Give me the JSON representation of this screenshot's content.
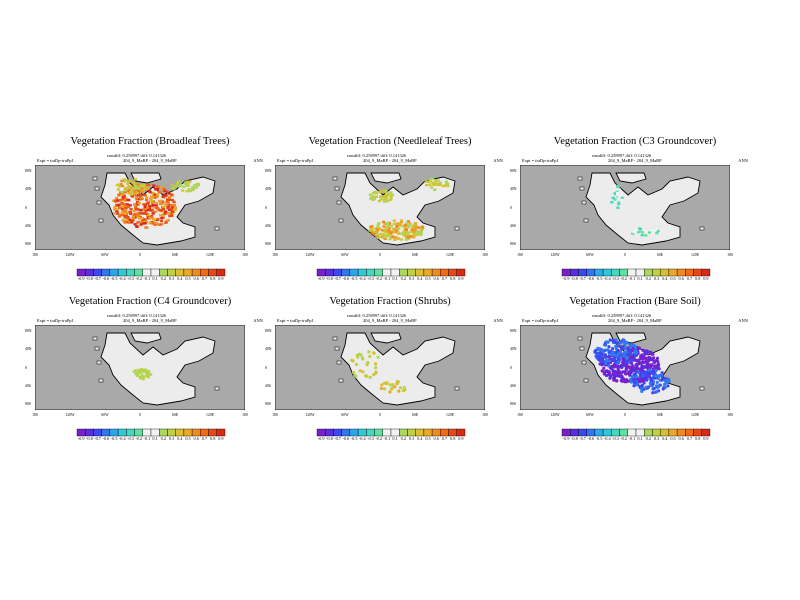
{
  "figure": {
    "panels": [
      {
        "title": "Vegetation Fraction (Broadleaf Trees)",
        "meta_line1": "rmsdiff: 0.258997 diff: 0.141326",
        "meta_line2": "204_9_MaBP - 204_9_MaBP",
        "expt": "Expt = traDp-traPp1",
        "season": "ANN",
        "colorbar_labels": [
          "-0.9",
          "-0.8",
          "-0.7",
          "-0.6",
          "-0.5",
          "-0.4",
          "-0.3",
          "-0.2",
          "-0.1",
          "0.1",
          "0.2",
          "0.3",
          "0.4",
          "0.5",
          "0.6",
          "0.7",
          "0.8",
          "0.9"
        ]
      },
      {
        "title": "Vegetation Fraction (Needleleaf Trees)",
        "meta_line1": "rmsdiff: 0.258997 diff: 0.141326",
        "meta_line2": "204_9_MaBP - 204_9_MaBP",
        "expt": "Expt = traDp-traPp1",
        "season": "ANN",
        "colorbar_labels": [
          "-0.9",
          "-0.8",
          "-0.7",
          "-0.6",
          "-0.5",
          "-0.4",
          "-0.3",
          "-0.2",
          "-0.1",
          "0.1",
          "0.2",
          "0.3",
          "0.4",
          "0.5",
          "0.6",
          "0.7",
          "0.8",
          "0.9"
        ]
      },
      {
        "title": "Vegetation Fraction (C3 Groundcover)",
        "meta_line1": "rmsdiff: 0.258997 diff: 0.141326",
        "meta_line2": "204_9_MaBP - 204_9_MaBP",
        "expt": "Expt = traDp-traPp1",
        "season": "ANN",
        "colorbar_labels": [
          "-0.9",
          "-0.8",
          "-0.7",
          "-0.6",
          "-0.5",
          "-0.4",
          "-0.3",
          "-0.2",
          "-0.1",
          "0.1",
          "0.2",
          "0.3",
          "0.4",
          "0.5",
          "0.6",
          "0.7",
          "0.8",
          "0.9"
        ]
      },
      {
        "title": "Vegetation Fraction (C4 Groundcover)",
        "meta_line1": "rmsdiff: 0.258997 diff: 0.141326",
        "meta_line2": "204_9_MaBP - 204_9_MaBP",
        "expt": "Expt = traDp-traPp1",
        "season": "ANN",
        "colorbar_labels": [
          "-0.9",
          "-0.8",
          "-0.7",
          "-0.6",
          "-0.5",
          "-0.4",
          "-0.3",
          "-0.2",
          "-0.1",
          "0.1",
          "0.2",
          "0.3",
          "0.4",
          "0.5",
          "0.6",
          "0.7",
          "0.8",
          "0.9"
        ]
      },
      {
        "title": "Vegetation Fraction (Shrubs)",
        "meta_line1": "rmsdiff: 0.258997 diff: 0.141326",
        "meta_line2": "204_9_MaBP - 204_9_MaBP",
        "expt": "Expt = traDp-traPp1",
        "season": "ANN",
        "colorbar_labels": [
          "-0.9",
          "-0.8",
          "-0.7",
          "-0.6",
          "-0.5",
          "-0.4",
          "-0.3",
          "-0.2",
          "-0.1",
          "0.1",
          "0.2",
          "0.3",
          "0.4",
          "0.5",
          "0.6",
          "0.7",
          "0.8",
          "0.9"
        ]
      },
      {
        "title": "Vegetation Fraction (Bare Soil)",
        "meta_line1": "rmsdiff: 0.258997 diff: 0.141326",
        "meta_line2": "204_9_MaBP - 204_9_MaBP",
        "expt": "Expt = traDp-traPp1",
        "season": "ANN",
        "colorbar_labels": [
          "-0.9",
          "-0.8",
          "-0.7",
          "-0.6",
          "-0.5",
          "-0.4",
          "-0.3",
          "-0.2",
          "-0.1",
          "0.1",
          "0.2",
          "0.3",
          "0.4",
          "0.5",
          "0.6",
          "0.7",
          "0.8",
          "0.9"
        ]
      }
    ],
    "lon_ticks": [
      "180",
      "120W",
      "60W",
      "0",
      "60E",
      "120E",
      "180"
    ],
    "lat_ticks": [
      "80N",
      "40N",
      "0",
      "40S",
      "80S"
    ],
    "colors": {
      "ocean": "#a9a9a9",
      "land": "#ececec",
      "coast": "#000000",
      "scale": [
        "#7b20c8",
        "#5a2be0",
        "#3f48f0",
        "#2f78f0",
        "#2aa8e8",
        "#30c8d8",
        "#44d8c0",
        "#60e0a0",
        "#f2f2f2",
        "#f2f2f2",
        "#a8d860",
        "#c0d040",
        "#d8c030",
        "#e8a828",
        "#f08a20",
        "#f06a18",
        "#e84818",
        "#d82818"
      ]
    }
  }
}
